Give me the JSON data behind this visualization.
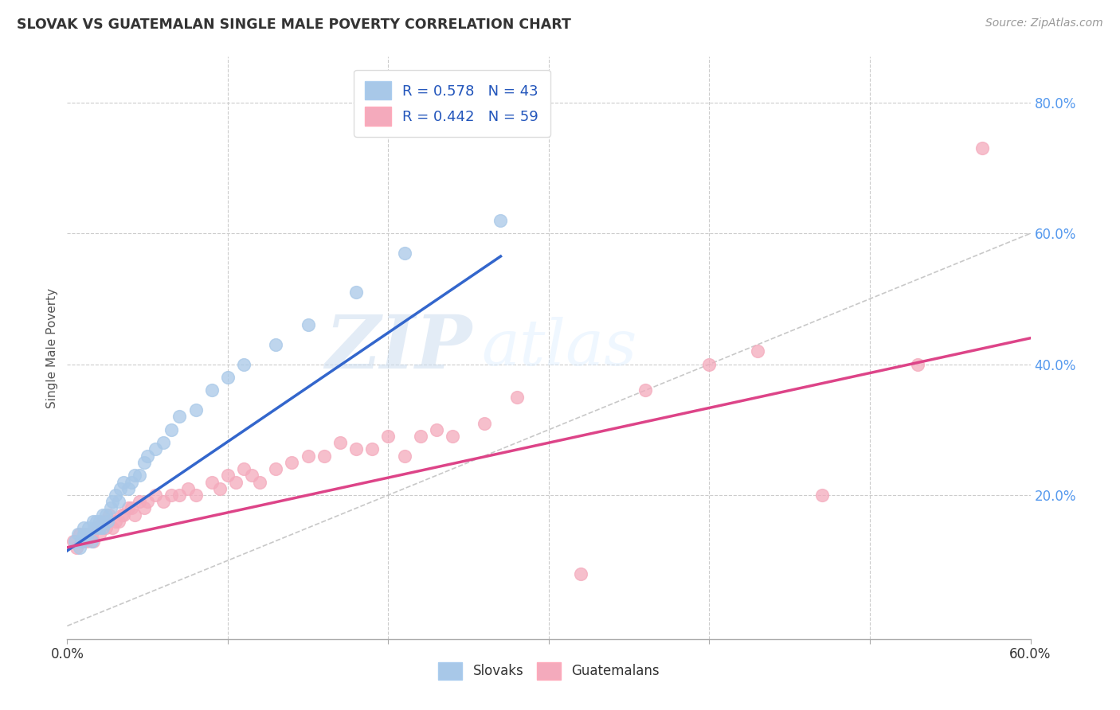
{
  "title": "SLOVAK VS GUATEMALAN SINGLE MALE POVERTY CORRELATION CHART",
  "source": "Source: ZipAtlas.com",
  "ylabel": "Single Male Poverty",
  "xlabel": "",
  "xlim": [
    0.0,
    0.6
  ],
  "ylim": [
    -0.02,
    0.87
  ],
  "xticks": [
    0.0,
    0.1,
    0.2,
    0.3,
    0.4,
    0.5,
    0.6
  ],
  "xticklabels": [
    "0.0%",
    "",
    "",
    "",
    "",
    "",
    "60.0%"
  ],
  "ytick_vals": [
    0.0,
    0.2,
    0.4,
    0.6,
    0.8
  ],
  "yticklabels_right": [
    "",
    "20.0%",
    "40.0%",
    "60.0%",
    "80.0%"
  ],
  "slovak_color": "#a8c8e8",
  "guatemalan_color": "#f4aabc",
  "slovak_line_color": "#3366cc",
  "guatemalan_line_color": "#dd4488",
  "diagonal_color": "#bbbbbb",
  "R_slovak": 0.578,
  "N_slovak": 43,
  "R_guatemalan": 0.442,
  "N_guatemalan": 59,
  "background_color": "#ffffff",
  "grid_color": "#cccccc",
  "watermark_zip": "ZIP",
  "watermark_atlas": "atlas",
  "slovak_x": [
    0.005,
    0.007,
    0.008,
    0.009,
    0.01,
    0.01,
    0.012,
    0.013,
    0.015,
    0.016,
    0.017,
    0.018,
    0.02,
    0.02,
    0.022,
    0.022,
    0.024,
    0.025,
    0.027,
    0.028,
    0.03,
    0.032,
    0.033,
    0.035,
    0.038,
    0.04,
    0.042,
    0.045,
    0.048,
    0.05,
    0.055,
    0.06,
    0.065,
    0.07,
    0.08,
    0.09,
    0.1,
    0.11,
    0.13,
    0.15,
    0.18,
    0.21,
    0.27
  ],
  "slovak_y": [
    0.13,
    0.14,
    0.12,
    0.13,
    0.14,
    0.15,
    0.14,
    0.15,
    0.13,
    0.16,
    0.15,
    0.16,
    0.15,
    0.16,
    0.15,
    0.17,
    0.17,
    0.16,
    0.18,
    0.19,
    0.2,
    0.19,
    0.21,
    0.22,
    0.21,
    0.22,
    0.23,
    0.23,
    0.25,
    0.26,
    0.27,
    0.28,
    0.3,
    0.32,
    0.33,
    0.36,
    0.38,
    0.4,
    0.43,
    0.46,
    0.51,
    0.57,
    0.62
  ],
  "guatemalan_x": [
    0.004,
    0.006,
    0.008,
    0.01,
    0.012,
    0.013,
    0.015,
    0.016,
    0.018,
    0.02,
    0.022,
    0.024,
    0.025,
    0.026,
    0.028,
    0.03,
    0.032,
    0.034,
    0.035,
    0.038,
    0.04,
    0.042,
    0.045,
    0.048,
    0.05,
    0.055,
    0.06,
    0.065,
    0.07,
    0.075,
    0.08,
    0.09,
    0.095,
    0.1,
    0.105,
    0.11,
    0.115,
    0.12,
    0.13,
    0.14,
    0.15,
    0.16,
    0.17,
    0.18,
    0.19,
    0.2,
    0.21,
    0.22,
    0.23,
    0.24,
    0.26,
    0.28,
    0.32,
    0.36,
    0.4,
    0.43,
    0.47,
    0.53,
    0.57
  ],
  "guatemalan_y": [
    0.13,
    0.12,
    0.14,
    0.13,
    0.13,
    0.14,
    0.14,
    0.13,
    0.15,
    0.14,
    0.16,
    0.15,
    0.16,
    0.17,
    0.15,
    0.16,
    0.16,
    0.17,
    0.17,
    0.18,
    0.18,
    0.17,
    0.19,
    0.18,
    0.19,
    0.2,
    0.19,
    0.2,
    0.2,
    0.21,
    0.2,
    0.22,
    0.21,
    0.23,
    0.22,
    0.24,
    0.23,
    0.22,
    0.24,
    0.25,
    0.26,
    0.26,
    0.28,
    0.27,
    0.27,
    0.29,
    0.26,
    0.29,
    0.3,
    0.29,
    0.31,
    0.35,
    0.08,
    0.36,
    0.4,
    0.42,
    0.2,
    0.4,
    0.73
  ],
  "slovak_line_x": [
    0.0,
    0.27
  ],
  "slovak_line_y": [
    0.115,
    0.565
  ],
  "guatemalan_line_x": [
    0.0,
    0.6
  ],
  "guatemalan_line_y": [
    0.12,
    0.44
  ]
}
